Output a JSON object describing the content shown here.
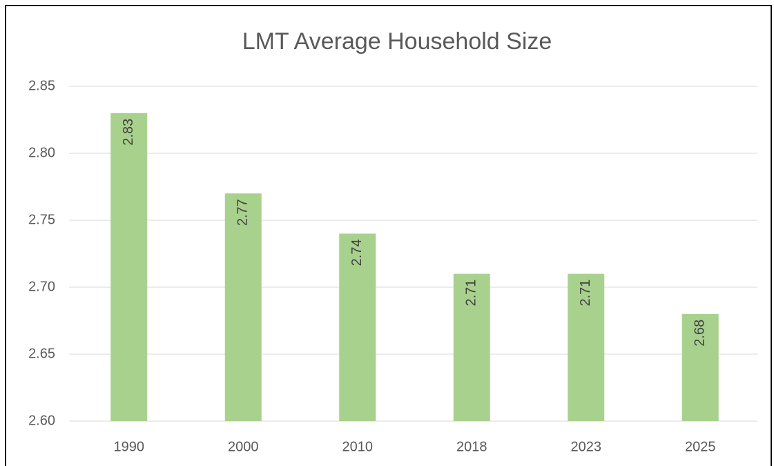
{
  "chart_data": {
    "type": "bar",
    "title": "LMT Average Household Size",
    "categories": [
      "1990",
      "2000",
      "2010",
      "2018",
      "2023",
      "2025"
    ],
    "values": [
      2.83,
      2.77,
      2.74,
      2.71,
      2.71,
      2.68
    ],
    "color": "#a9d18e",
    "ylim": [
      2.6,
      2.85
    ],
    "yticks": [
      {
        "value": 2.6,
        "label": "2.60"
      },
      2.65,
      {
        "value": 2.7,
        "label": "2.70"
      },
      2.75,
      {
        "value": 2.8,
        "label": "2.80"
      },
      2.85
    ],
    "grid": true
  }
}
